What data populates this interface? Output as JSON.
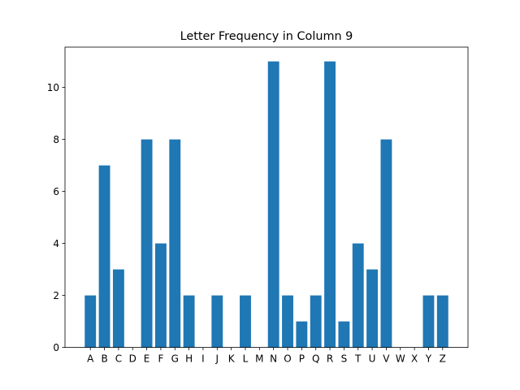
{
  "chart_data": {
    "type": "bar",
    "title": "Letter Frequency in Column 9",
    "xlabel": "",
    "ylabel": "",
    "categories": [
      "A",
      "B",
      "C",
      "D",
      "E",
      "F",
      "G",
      "H",
      "I",
      "J",
      "K",
      "L",
      "M",
      "N",
      "O",
      "P",
      "Q",
      "R",
      "S",
      "T",
      "U",
      "V",
      "W",
      "X",
      "Y",
      "Z"
    ],
    "values": [
      2,
      7,
      3,
      0,
      8,
      4,
      8,
      2,
      0,
      2,
      0,
      2,
      0,
      11,
      2,
      1,
      2,
      11,
      1,
      4,
      3,
      8,
      0,
      0,
      2,
      2
    ],
    "ylim": [
      0,
      11.55
    ],
    "yticks": [
      0,
      2,
      4,
      6,
      8,
      10
    ],
    "grid": false,
    "bar_color": "#1f77b4"
  }
}
